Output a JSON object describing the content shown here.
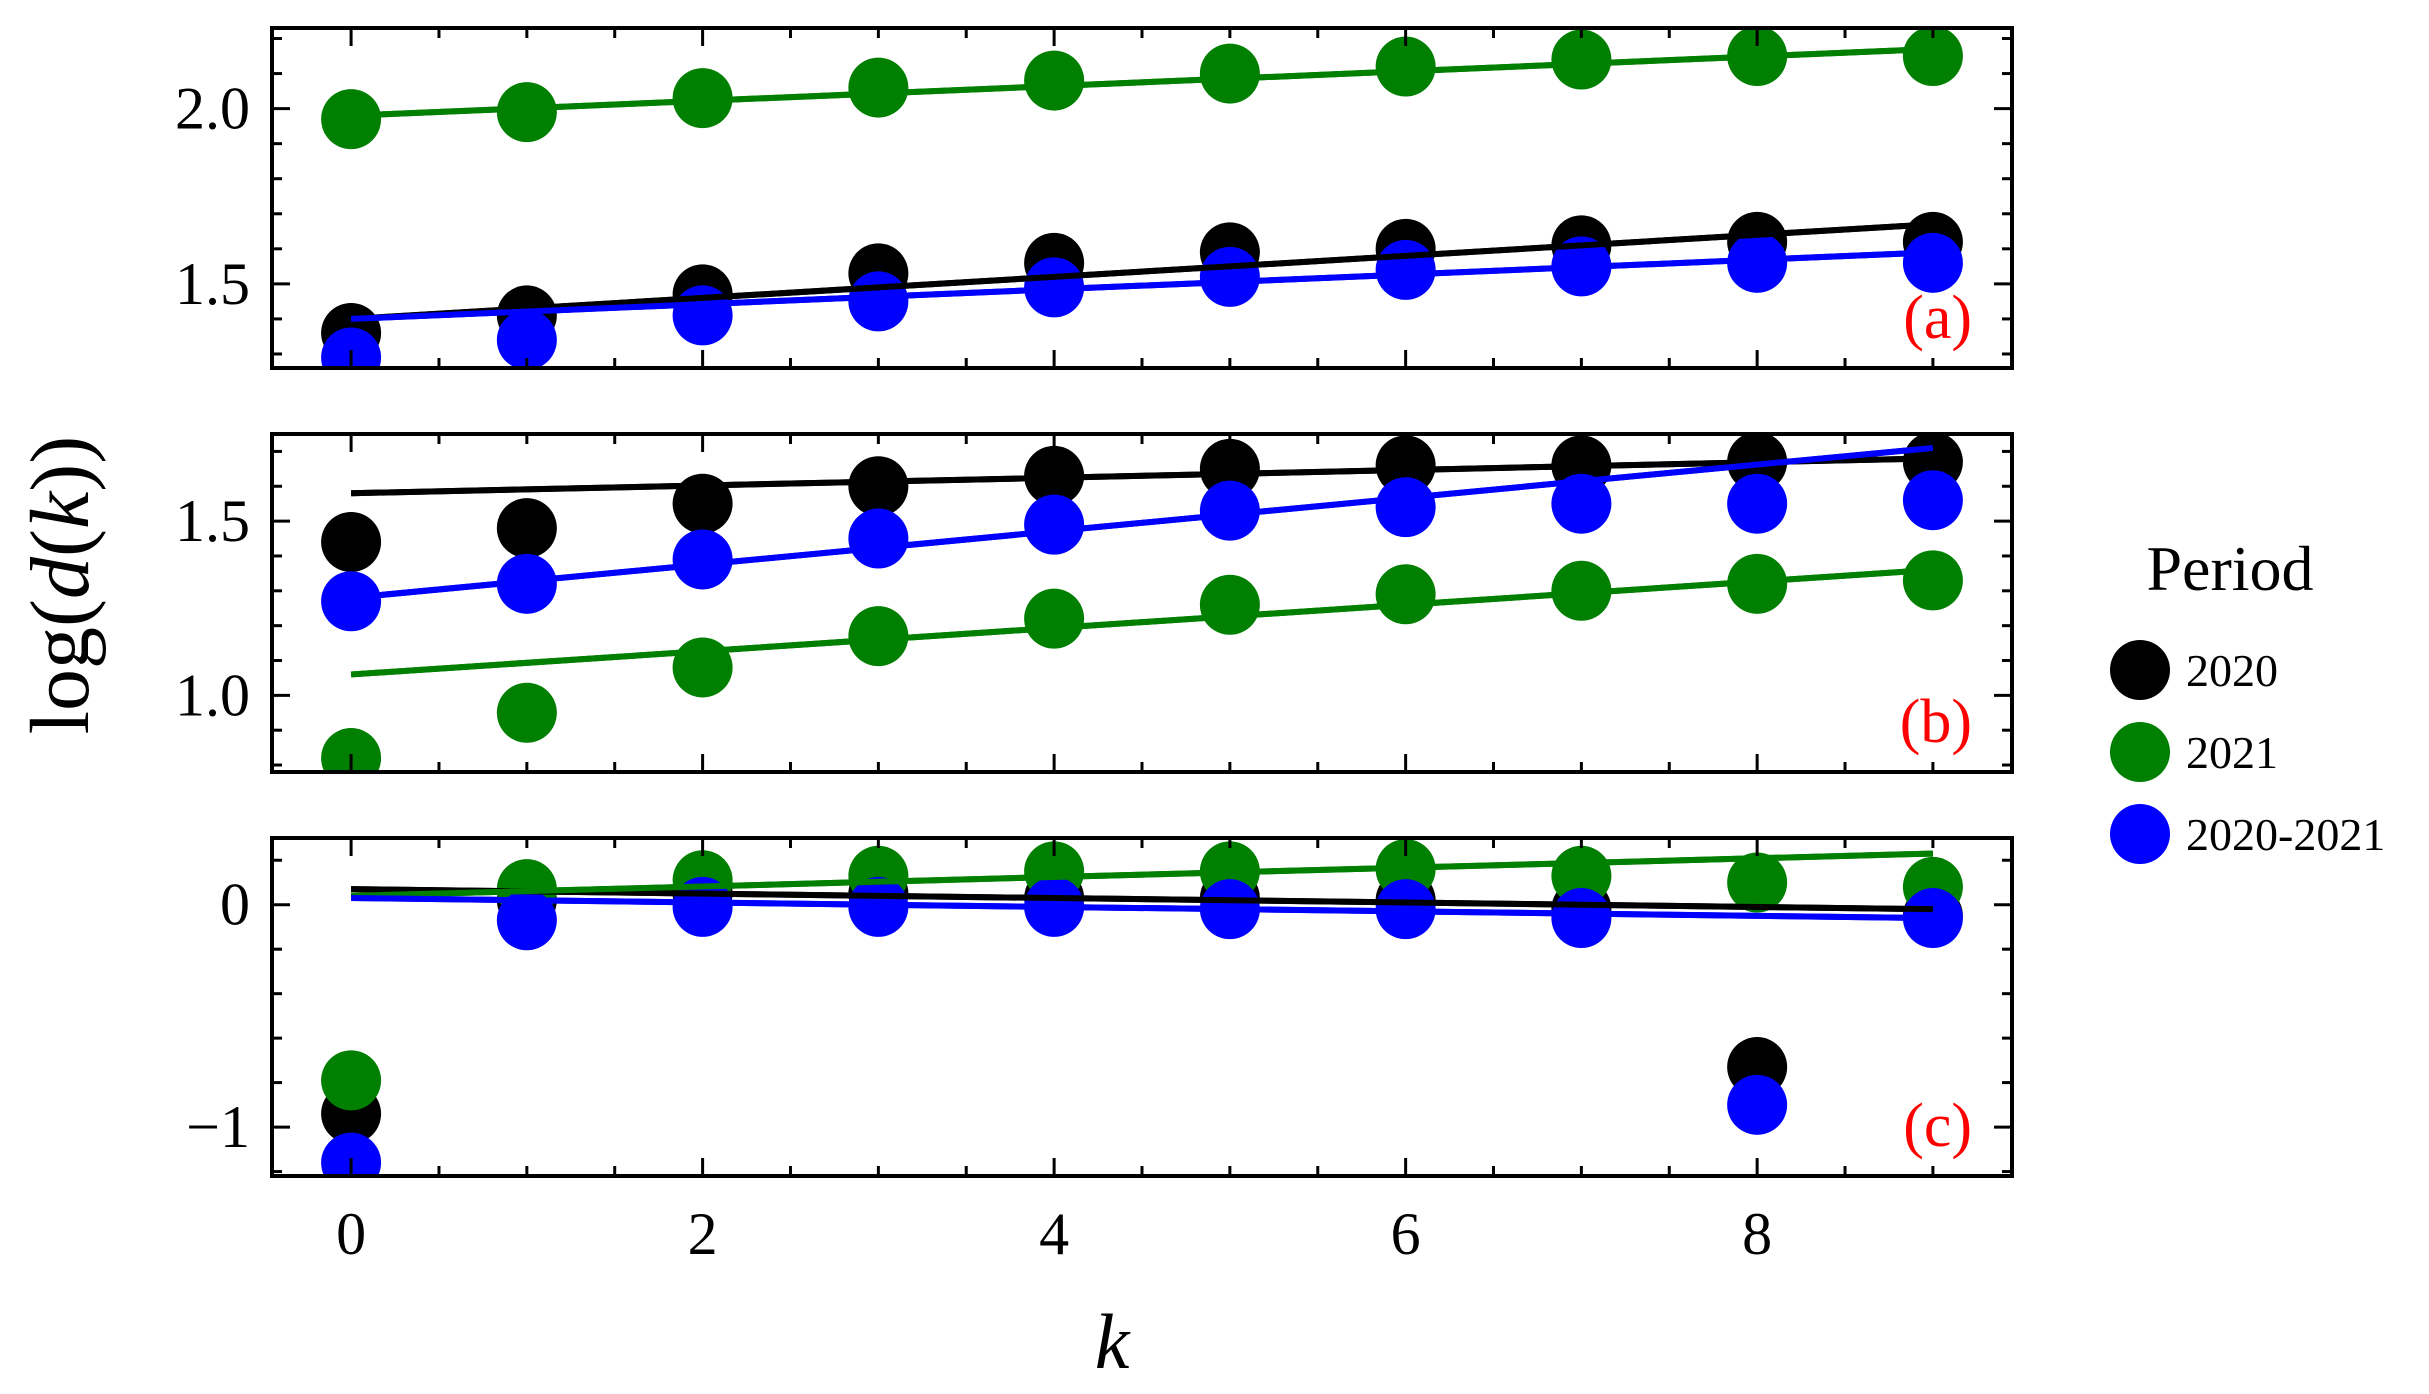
{
  "chart_data": [
    {
      "panel": "(a)",
      "type": "scatter",
      "ylim": [
        1.26,
        2.23
      ],
      "yticks": [
        1.5,
        2.0
      ],
      "ytick_labels": [
        "1.5",
        "2.0"
      ],
      "series": [
        {
          "name": "2020",
          "color": "#000000",
          "x": [
            0,
            1,
            2,
            3,
            4,
            5,
            6,
            7,
            8,
            9
          ],
          "y": [
            1.36,
            1.41,
            1.47,
            1.53,
            1.56,
            1.59,
            1.6,
            1.61,
            1.62,
            1.62
          ],
          "fit": {
            "x0": 0,
            "y0": 1.4,
            "x1": 9,
            "y1": 1.67
          }
        },
        {
          "name": "2021",
          "color": "#007f00",
          "x": [
            0,
            1,
            2,
            3,
            4,
            5,
            6,
            7,
            8,
            9
          ],
          "y": [
            1.97,
            1.99,
            2.03,
            2.06,
            2.08,
            2.1,
            2.12,
            2.14,
            2.15,
            2.15
          ],
          "fit": {
            "x0": 0,
            "y0": 1.98,
            "x1": 9,
            "y1": 2.17
          }
        },
        {
          "name": "2020-2021",
          "color": "#0000ff",
          "x": [
            0,
            1,
            2,
            3,
            4,
            5,
            6,
            7,
            8,
            9
          ],
          "y": [
            1.29,
            1.34,
            1.41,
            1.45,
            1.49,
            1.52,
            1.54,
            1.55,
            1.56,
            1.56
          ],
          "fit": {
            "x0": 0,
            "y0": 1.4,
            "x1": 9,
            "y1": 1.59
          }
        }
      ]
    },
    {
      "panel": "(b)",
      "type": "scatter",
      "ylim": [
        0.78,
        1.75
      ],
      "yticks": [
        1.0,
        1.5
      ],
      "ytick_labels": [
        "1.0",
        "1.5"
      ],
      "series": [
        {
          "name": "2020",
          "color": "#000000",
          "x": [
            0,
            1,
            2,
            3,
            4,
            5,
            6,
            7,
            8,
            9
          ],
          "y": [
            1.44,
            1.48,
            1.55,
            1.6,
            1.63,
            1.65,
            1.66,
            1.66,
            1.67,
            1.67
          ],
          "fit": {
            "x0": 0,
            "y0": 1.58,
            "x1": 9,
            "y1": 1.68
          }
        },
        {
          "name": "2021",
          "color": "#007f00",
          "x": [
            0,
            1,
            2,
            3,
            4,
            5,
            6,
            7,
            8,
            9
          ],
          "y": [
            0.82,
            0.95,
            1.08,
            1.17,
            1.22,
            1.26,
            1.29,
            1.3,
            1.32,
            1.33
          ],
          "fit": {
            "x0": 0,
            "y0": 1.06,
            "x1": 9,
            "y1": 1.36
          }
        },
        {
          "name": "2020-2021",
          "color": "#0000ff",
          "x": [
            0,
            1,
            2,
            3,
            4,
            5,
            6,
            7,
            8,
            9
          ],
          "y": [
            1.27,
            1.32,
            1.39,
            1.45,
            1.49,
            1.53,
            1.54,
            1.55,
            1.55,
            1.56
          ],
          "fit": {
            "x0": 0,
            "y0": 1.28,
            "x1": 9,
            "y1": 1.71
          }
        }
      ]
    },
    {
      "panel": "(c)",
      "type": "scatter",
      "ylim": [
        -1.22,
        0.3
      ],
      "yticks": [
        -1,
        0
      ],
      "ytick_labels": [
        "−1",
        "0"
      ],
      "series": [
        {
          "name": "2020",
          "color": "#000000",
          "x": [
            0,
            1,
            2,
            3,
            4,
            5,
            6,
            7,
            8,
            9
          ],
          "y": [
            -0.94,
            0.02,
            0.05,
            0.05,
            0.03,
            0.03,
            0.02,
            -0.02,
            -0.73,
            -0.05
          ],
          "fit": {
            "x0": 0,
            "y0": 0.07,
            "x1": 9,
            "y1": -0.02
          }
        },
        {
          "name": "2021",
          "color": "#007f00",
          "x": [
            0,
            1,
            2,
            3,
            4,
            5,
            6,
            7,
            8,
            9
          ],
          "y": [
            -0.79,
            0.07,
            0.11,
            0.13,
            0.15,
            0.15,
            0.16,
            0.13,
            0.1,
            0.08
          ],
          "fit": {
            "x0": 0,
            "y0": 0.04,
            "x1": 9,
            "y1": 0.23
          }
        },
        {
          "name": "2020-2021",
          "color": "#0000ff",
          "x": [
            0,
            1,
            2,
            3,
            4,
            5,
            6,
            7,
            8,
            9
          ],
          "y": [
            -1.16,
            -0.07,
            -0.01,
            -0.01,
            -0.01,
            -0.02,
            -0.02,
            -0.06,
            -0.9,
            -0.06
          ],
          "fit": {
            "x0": 0,
            "y0": 0.03,
            "x1": 9,
            "y1": -0.06
          }
        }
      ]
    }
  ],
  "axes": {
    "xlim": [
      -0.45,
      9.45
    ],
    "xticks": [
      0,
      2,
      4,
      6,
      8
    ],
    "xtick_labels": [
      "0",
      "2",
      "4",
      "6",
      "8"
    ],
    "xlabel": "k",
    "ylabel": "log(d(k))"
  },
  "legend": {
    "title": "Period",
    "placement": "right",
    "items": [
      {
        "label": "2020",
        "color": "#000000"
      },
      {
        "label": "2021",
        "color": "#007f00"
      },
      {
        "label": "2020-2021",
        "color": "#0000ff"
      }
    ]
  },
  "panel_label_color": "#ff0000"
}
